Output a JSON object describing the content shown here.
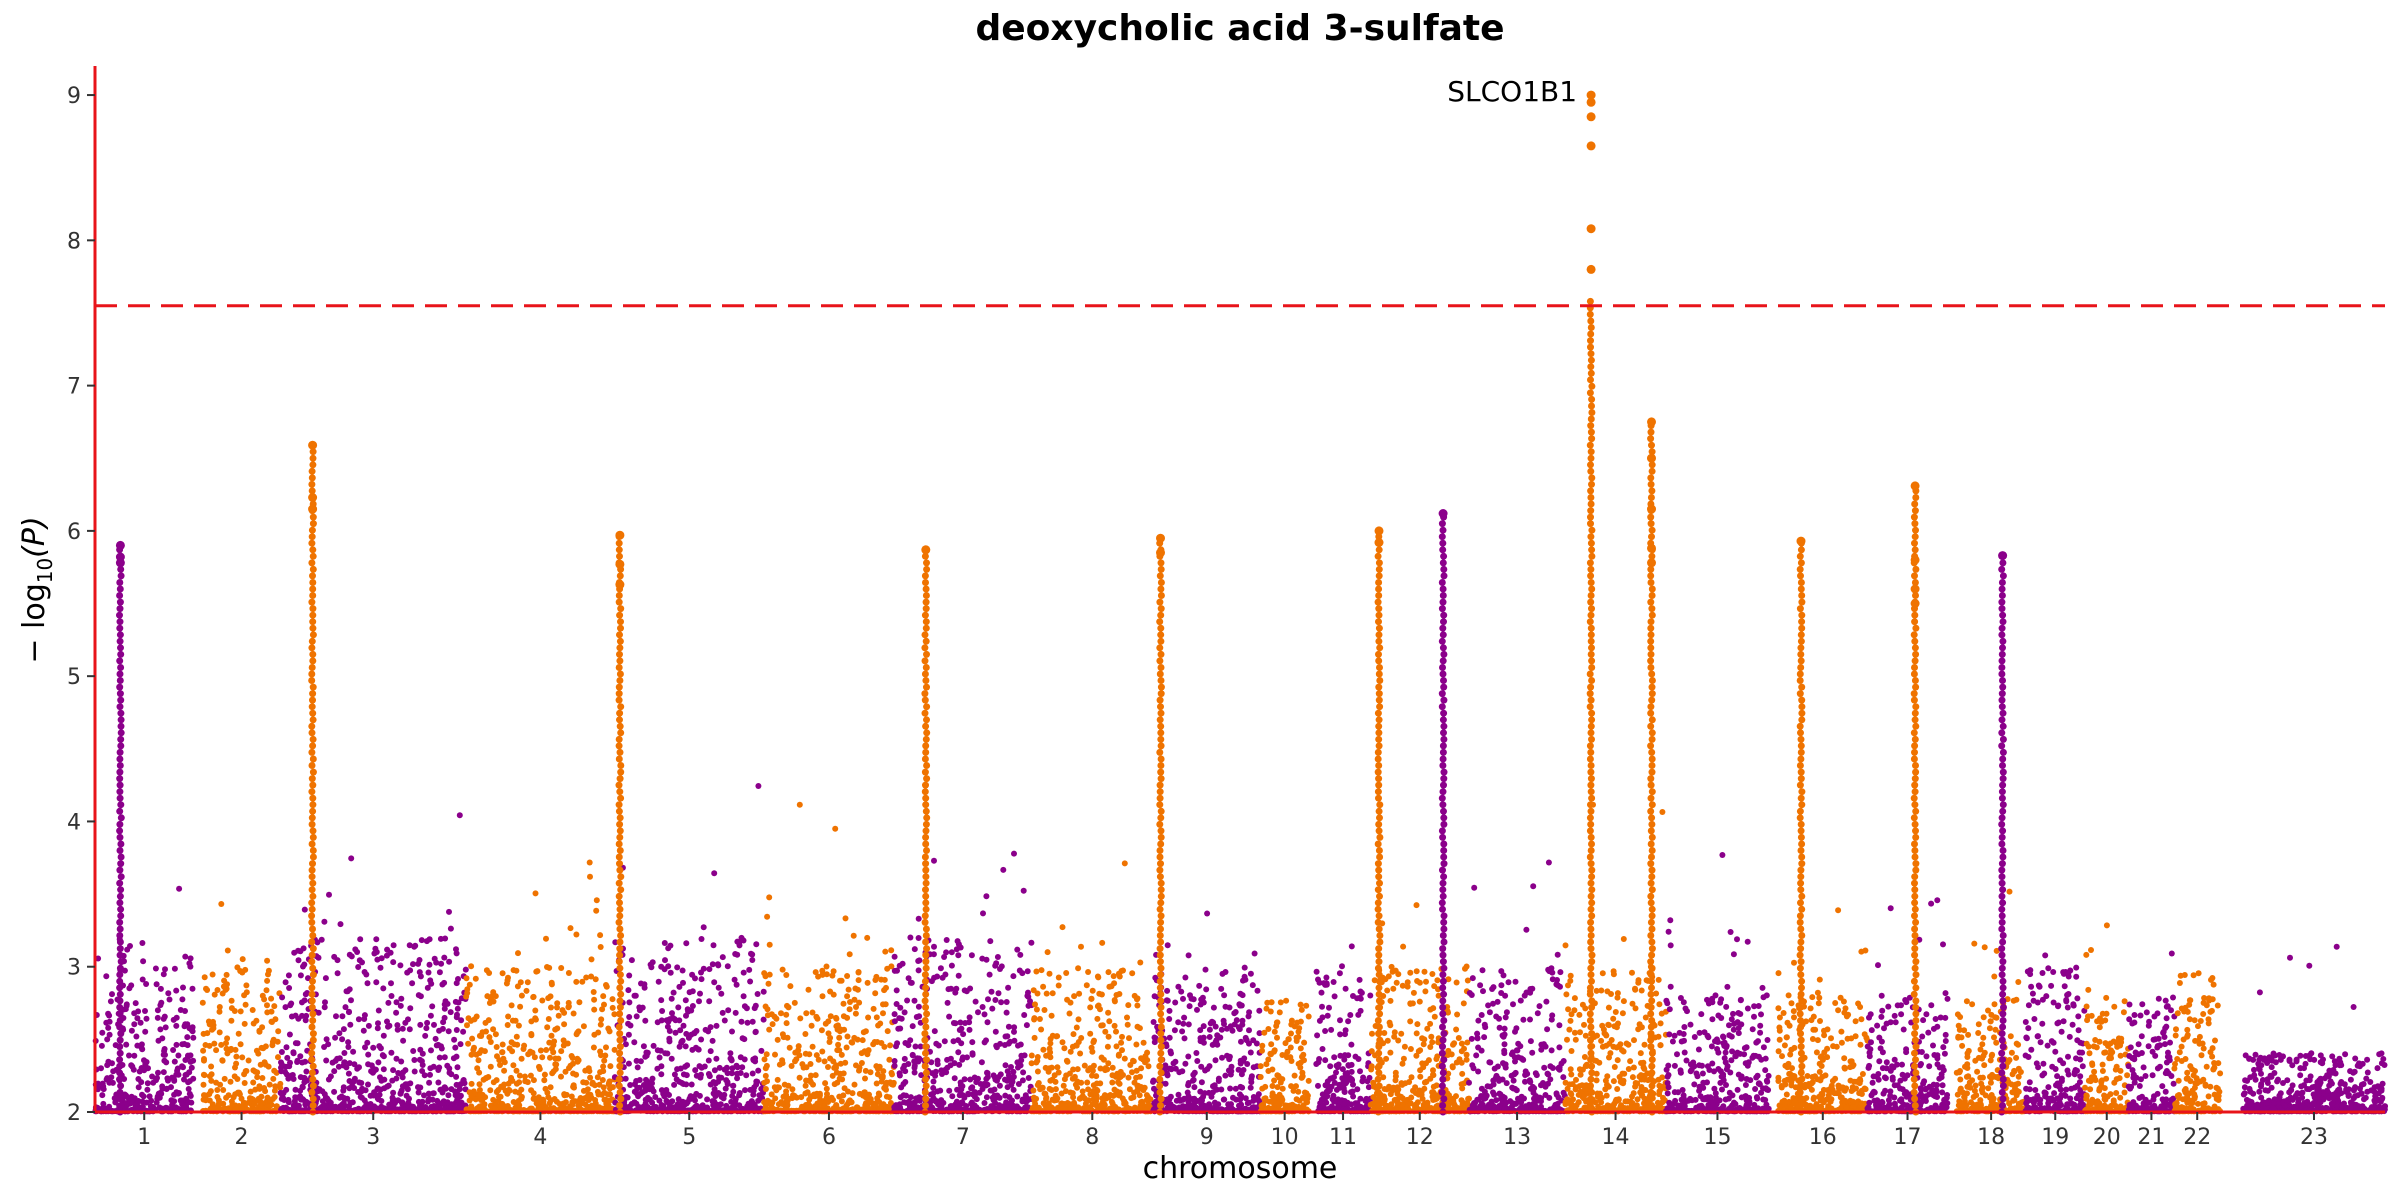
{
  "chart_data": {
    "type": "scatter",
    "subtype": "manhattan",
    "title": "deoxycholic acid 3-sulfate",
    "xlabel": "chromosome",
    "ylabel_parts": {
      "main": "− log",
      "sub": "10",
      "after": "(P)"
    },
    "ylim": [
      2,
      9.2
    ],
    "yticks": [
      2,
      3,
      4,
      5,
      6,
      7,
      8,
      9
    ],
    "significance_threshold": 7.55,
    "threshold_line_color": "#e8141a",
    "axis_color": "#e8141a",
    "colors": {
      "odd_chromosome": "#8b008b",
      "even_chromosome": "#ef7300"
    },
    "chromosomes": [
      {
        "label": "1",
        "tick": 0.0375,
        "range": [
          0.0,
          0.043
        ],
        "density": 3.0
      },
      {
        "label": "2",
        "tick": 0.122,
        "range": [
          0.047,
          0.081
        ],
        "density": 2.8
      },
      {
        "label": "3",
        "tick": 0.196,
        "range": [
          0.081,
          0.162
        ],
        "density": 3.0
      },
      {
        "label": "4",
        "tick": 0.259,
        "range": [
          0.162,
          0.227
        ],
        "density": 2.8
      },
      {
        "label": "5",
        "tick": 0.322,
        "range": [
          0.227,
          0.292
        ],
        "density": 3.0
      },
      {
        "label": "6",
        "tick": 0.378,
        "range": [
          0.292,
          0.349
        ],
        "density": 2.8
      },
      {
        "label": "7",
        "tick": 0.433,
        "range": [
          0.349,
          0.409
        ],
        "density": 3.0
      },
      {
        "label": "8",
        "tick": 0.487,
        "range": [
          0.409,
          0.462
        ],
        "density": 2.8
      },
      {
        "label": "9",
        "tick": 0.54,
        "range": [
          0.462,
          0.509
        ],
        "density": 2.8
      },
      {
        "label": "10",
        "tick": 0.582,
        "range": [
          0.509,
          0.53
        ],
        "density": 2.6
      },
      {
        "label": "11",
        "tick": 0.623,
        "range": [
          0.533,
          0.557
        ],
        "density": 2.8
      },
      {
        "label": "12",
        "tick": 0.666,
        "range": [
          0.557,
          0.6
        ],
        "density": 2.8
      },
      {
        "label": "13",
        "tick": 0.711,
        "range": [
          0.6,
          0.642
        ],
        "density": 2.8
      },
      {
        "label": "14",
        "tick": 0.746,
        "range": [
          0.642,
          0.686
        ],
        "density": 2.8
      },
      {
        "label": "15",
        "tick": 0.781,
        "range": [
          0.686,
          0.731
        ],
        "density": 2.6
      },
      {
        "label": "16",
        "tick": 0.818,
        "range": [
          0.735,
          0.774
        ],
        "density": 2.6
      },
      {
        "label": "17",
        "tick": 0.853,
        "range": [
          0.774,
          0.809
        ],
        "density": 2.6
      },
      {
        "label": "18",
        "tick": 0.878,
        "range": [
          0.813,
          0.843
        ],
        "density": 2.6
      },
      {
        "label": "19",
        "tick": 0.906,
        "range": [
          0.843,
          0.869
        ],
        "density": 2.8
      },
      {
        "label": "20",
        "tick": 0.925,
        "range": [
          0.869,
          0.888
        ],
        "density": 2.6
      },
      {
        "label": "21",
        "tick": 0.943,
        "range": [
          0.888,
          0.908
        ],
        "density": 2.6
      },
      {
        "label": "22",
        "tick": 0.977,
        "range": [
          0.908,
          0.928
        ],
        "density": 2.8
      },
      {
        "label": "23",
        "tick": 0.977,
        "range": [
          0.938,
          1.0
        ],
        "density": 2.2
      }
    ],
    "peaks": [
      {
        "x": 0.6533,
        "y": [
          7.8,
          8.08,
          8.65,
          8.85,
          8.95,
          9.0
        ],
        "color": "#ef7300"
      },
      {
        "x": 0.095,
        "y": [
          6.59,
          6.23,
          6.15
        ],
        "color": "#ef7300"
      },
      {
        "x": 0.6797,
        "y": [
          6.75,
          6.5,
          6.15,
          5.88,
          5.78
        ],
        "color": "#ef7300"
      },
      {
        "x": 0.7948,
        "y": [
          6.31,
          5.8,
          5.6,
          5.5
        ],
        "color": "#ef7300"
      },
      {
        "x": 0.5887,
        "y": [
          6.12
        ],
        "color": "#8b008b"
      },
      {
        "x": 0.2292,
        "y": [
          5.97,
          5.77,
          5.63
        ],
        "color": "#ef7300"
      },
      {
        "x": 0.3628,
        "y": [
          5.87
        ],
        "color": "#ef7300"
      },
      {
        "x": 0.4653,
        "y": [
          5.95,
          5.85
        ],
        "color": "#ef7300"
      },
      {
        "x": 0.5607,
        "y": [
          6.0,
          5.92
        ],
        "color": "#ef7300"
      },
      {
        "x": 0.0111,
        "y": [
          5.9,
          5.82,
          5.78
        ],
        "color": "#8b008b"
      },
      {
        "x": 0.745,
        "y": [
          5.93
        ],
        "color": "#ef7300"
      },
      {
        "x": 0.833,
        "y": [
          5.83
        ],
        "color": "#8b008b"
      }
    ],
    "annotations": [
      {
        "text": "SLCO1B1",
        "x": 0.6533,
        "y": 9.0
      }
    ]
  }
}
